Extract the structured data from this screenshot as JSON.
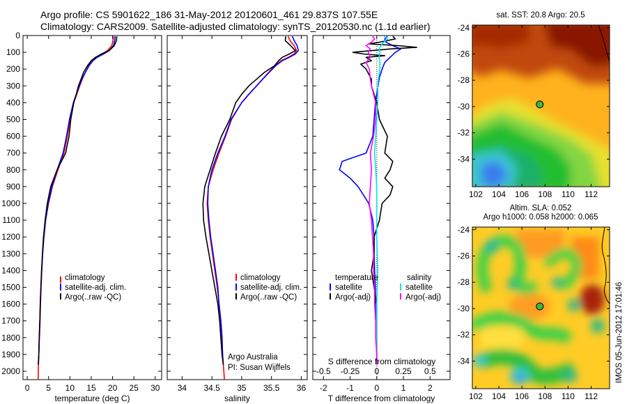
{
  "header": {
    "line1": "Argo profile: CS 5901622_186 31-May-2012 20120601_461 29.837S 107.55E",
    "line2": "Climatology: CARS2009. Satellite-adjusted climatology: synTS_20120530.nc (1.1d earlier)"
  },
  "colors": {
    "climatology": "#ff0000",
    "satellite": "#0000ff",
    "argo": "#000000",
    "satellite_s": "#00e5e5",
    "argo_s": "#ff00ff"
  },
  "annotations": {
    "institution": "Argo Australia",
    "pi": "PI: Susan Wijffels",
    "timestamp": "IMOS 05-Jun-2012 17:01:46"
  },
  "chart_data": [
    {
      "id": "temperature",
      "type": "line",
      "xlabel": "temperature (deg C)",
      "ylabel": "",
      "xlim": [
        -1,
        31.5
      ],
      "ylim": [
        2050,
        0
      ],
      "xticks": [
        0,
        5,
        10,
        15,
        20,
        25,
        30
      ],
      "yticks": [
        0,
        100,
        200,
        300,
        400,
        500,
        600,
        700,
        800,
        900,
        1000,
        1100,
        1200,
        1300,
        1400,
        1500,
        1600,
        1700,
        1800,
        1900,
        2000
      ],
      "legend": [
        "climatology",
        "satellite-adj. clim.",
        "Argo(..raw -QC)"
      ],
      "legend_position": "lower-middle",
      "series": [
        {
          "name": "climatology",
          "color": "#ff0000",
          "depth": [
            5,
            30,
            60,
            90,
            110,
            130,
            150,
            180,
            220,
            260,
            300,
            350,
            400,
            500,
            600,
            700,
            800,
            900,
            1000,
            1100,
            1200,
            1300,
            1400,
            1500,
            1600,
            1700,
            1800,
            1900,
            2000,
            2050
          ],
          "values": [
            20.2,
            20.1,
            19.8,
            18.8,
            17.5,
            16.2,
            15.3,
            14.4,
            13.6,
            12.9,
            12.3,
            11.6,
            10.9,
            10.0,
            9.4,
            8.6,
            7.2,
            5.9,
            5.0,
            4.3,
            3.9,
            3.6,
            3.4,
            3.25,
            3.1,
            3.0,
            2.85,
            2.7,
            2.6,
            2.55
          ]
        },
        {
          "name": "satellite-adj. clim.",
          "color": "#0000ff",
          "depth": [
            5,
            30,
            60,
            90,
            110,
            130,
            150,
            180,
            220,
            260,
            300,
            350,
            400,
            500,
            600,
            700,
            800,
            900,
            1000,
            1100,
            1200,
            1300,
            1400,
            1500,
            1600,
            1700,
            1800,
            1900,
            1960
          ],
          "values": [
            20.6,
            20.5,
            20.2,
            19.2,
            17.9,
            16.4,
            15.4,
            14.5,
            13.6,
            12.8,
            12.2,
            11.5,
            10.8,
            9.9,
            9.2,
            8.4,
            7.0,
            5.8,
            4.9,
            4.3,
            3.9,
            3.6,
            3.4,
            3.2,
            3.05,
            2.95,
            2.8,
            2.7,
            2.6
          ]
        },
        {
          "name": "Argo(..raw -QC)",
          "color": "#000000",
          "depth": [
            5,
            30,
            60,
            90,
            110,
            130,
            150,
            180,
            220,
            260,
            300,
            350,
            400,
            500,
            600,
            700,
            800,
            900,
            1000,
            1100,
            1200,
            1300,
            1400,
            1500,
            1600,
            1700,
            1800,
            1900,
            1960
          ],
          "values": [
            21.0,
            20.9,
            20.4,
            19.2,
            17.4,
            16.0,
            15.0,
            14.1,
            13.2,
            12.6,
            12.0,
            11.5,
            10.9,
            10.2,
            9.8,
            9.0,
            7.0,
            5.5,
            4.7,
            4.2,
            3.8,
            3.55,
            3.35,
            3.2,
            3.05,
            2.95,
            2.8,
            2.7,
            2.6
          ]
        }
      ]
    },
    {
      "id": "salinity",
      "type": "line",
      "xlabel": "salinity",
      "ylabel": "",
      "xlim": [
        33.75,
        36.1
      ],
      "ylim": [
        2050,
        0
      ],
      "xticks": [
        34,
        34.5,
        35,
        35.5,
        36
      ],
      "legend": [
        "climatology",
        "satellite-adj. clim.",
        "Argo(..raw -QC)"
      ],
      "legend_position": "lower-right",
      "series": [
        {
          "name": "climatology",
          "color": "#ff0000",
          "depth": [
            5,
            30,
            60,
            90,
            110,
            130,
            150,
            180,
            220,
            260,
            300,
            350,
            400,
            500,
            600,
            700,
            800,
            900,
            1000,
            1100,
            1200,
            1300,
            1400,
            1500,
            1600,
            1700,
            1800,
            1900,
            2000,
            2050
          ],
          "values": [
            35.78,
            35.81,
            35.88,
            35.92,
            35.88,
            35.78,
            35.66,
            35.56,
            35.45,
            35.35,
            35.25,
            35.12,
            35.0,
            34.83,
            34.73,
            34.62,
            34.52,
            34.44,
            34.42,
            34.44,
            34.47,
            34.51,
            34.55,
            34.59,
            34.62,
            34.65,
            34.67,
            34.68,
            34.7,
            34.71
          ]
        },
        {
          "name": "satellite-adj. clim.",
          "color": "#0000ff",
          "depth": [
            5,
            30,
            60,
            90,
            110,
            130,
            150,
            180,
            220,
            260,
            300,
            350,
            400,
            500,
            600,
            700,
            800,
            900,
            1000,
            1100,
            1200,
            1300,
            1400,
            1500,
            1600,
            1700,
            1800,
            1900,
            1960
          ],
          "values": [
            35.85,
            35.88,
            35.93,
            35.95,
            35.9,
            35.8,
            35.68,
            35.57,
            35.46,
            35.35,
            35.25,
            35.12,
            35.0,
            34.82,
            34.72,
            34.6,
            34.5,
            34.44,
            34.43,
            34.45,
            34.48,
            34.52,
            34.56,
            34.6,
            34.62,
            34.65,
            34.67,
            34.68,
            34.69
          ]
        },
        {
          "name": "Argo(..raw -QC)",
          "color": "#000000",
          "depth": [
            5,
            30,
            60,
            90,
            110,
            130,
            150,
            180,
            220,
            260,
            300,
            350,
            400,
            500,
            600,
            700,
            800,
            900,
            1000,
            1100,
            1200,
            1300,
            1400,
            1500,
            1600,
            1700,
            1800,
            1900,
            1960
          ],
          "values": [
            35.74,
            35.73,
            35.82,
            35.9,
            35.8,
            35.68,
            35.62,
            35.55,
            35.38,
            35.25,
            35.12,
            35.0,
            34.9,
            34.8,
            34.66,
            34.56,
            34.47,
            34.38,
            34.35,
            34.36,
            34.4,
            34.45,
            34.5,
            34.55,
            34.6,
            34.63,
            34.65,
            34.67,
            34.69
          ]
        }
      ]
    },
    {
      "id": "differences",
      "type": "line",
      "xlabel": "T difference from climatology",
      "xlabel_top": "S difference from climatology",
      "xlim": [
        -2.4,
        2.75
      ],
      "xlim_s": [
        -0.6,
        0.6875
      ],
      "ylim": [
        2050,
        0
      ],
      "xticks": [
        -2,
        -1,
        0,
        1,
        2
      ],
      "xticks_s": [
        "-0.5",
        "-0.25",
        "0",
        "0.25",
        "0.5"
      ],
      "xticks_s_values": [
        -0.5,
        -0.25,
        0,
        0.25,
        0.5
      ],
      "legend_left_title": "temperature",
      "legend_right_title": "salinity",
      "legend_left": [
        "satellite",
        "Argo(-adj)"
      ],
      "legend_right": [
        "satellite",
        "Argo(-adj)"
      ],
      "legend_position": "lower-middle",
      "series": [
        {
          "name": "temperature satellite",
          "color": "#0000ff",
          "units": "T",
          "depth": [
            5,
            20,
            40,
            60,
            80,
            100,
            130,
            160,
            200,
            250,
            300,
            400,
            500,
            600,
            700,
            750,
            800,
            850,
            900,
            950,
            1000,
            1100,
            1200,
            1300,
            1400,
            1500,
            1600,
            1700,
            1800,
            1900,
            1960
          ],
          "values": [
            0.4,
            0.3,
            0.35,
            0.6,
            0.9,
            0.7,
            0.5,
            0.3,
            0.2,
            0.1,
            0.05,
            -0.05,
            -0.1,
            -0.15,
            -0.4,
            -1.3,
            -1.4,
            -1.0,
            -0.7,
            -0.5,
            -0.3,
            -0.15,
            -0.1,
            -0.1,
            -0.08,
            -0.05,
            -0.05,
            -0.04,
            -0.03,
            0,
            0
          ]
        },
        {
          "name": "temperature Argo(-adj)",
          "color": "#000000",
          "units": "T",
          "depth": [
            5,
            20,
            40,
            50,
            60,
            70,
            80,
            90,
            100,
            110,
            120,
            130,
            150,
            170,
            200,
            230,
            260,
            300,
            350,
            400,
            500,
            600,
            700,
            750,
            800,
            850,
            900,
            950,
            1000,
            1100,
            1200,
            1300,
            1400,
            1500,
            1600,
            1700,
            1800,
            1900,
            1960
          ],
          "values": [
            0.6,
            0.7,
            0.1,
            -0.3,
            0.8,
            1.5,
            0.5,
            -0.2,
            -0.9,
            -0.5,
            0.3,
            -0.4,
            -0.2,
            -0.6,
            -0.4,
            -0.3,
            -0.2,
            -0.2,
            -0.1,
            0.0,
            0.1,
            0.4,
            0.3,
            0.6,
            0.5,
            0.3,
            0.6,
            0.5,
            0.2,
            0.1,
            -0.1,
            -0.1,
            -0.2,
            -0.1,
            0,
            0,
            0,
            0,
            0
          ]
        },
        {
          "name": "salinity satellite",
          "color": "#00e5e5",
          "units": "S",
          "depth": [
            5,
            20,
            50,
            80,
            100,
            130,
            160,
            200,
            260,
            300,
            400,
            500,
            600,
            700,
            800,
            900,
            1000,
            1200,
            1400,
            1600,
            1800,
            1960
          ],
          "values": [
            0.07,
            0.1,
            0.05,
            0.02,
            0.03,
            0.02,
            0.03,
            0.03,
            0.015,
            0.01,
            0.01,
            0.0,
            -0.01,
            -0.02,
            -0.01,
            0.0,
            0.0,
            0.0,
            0.01,
            0.0,
            0.0,
            0.0
          ]
        },
        {
          "name": "salinity Argo(-adj)",
          "color": "#ff00ff",
          "units": "S",
          "depth": [
            5,
            20,
            40,
            60,
            80,
            100,
            130,
            160,
            200,
            260,
            300,
            400,
            500,
            600,
            700,
            800,
            900,
            1000,
            1100,
            1200,
            1300,
            1400,
            1500,
            1600,
            1700,
            1800,
            1900,
            1960
          ],
          "values": [
            -0.04,
            -0.02,
            -0.05,
            -0.1,
            -0.06,
            -0.08,
            -0.06,
            -0.1,
            -0.07,
            -0.06,
            -0.05,
            -0.01,
            -0.01,
            -0.03,
            -0.06,
            -0.05,
            -0.06,
            -0.07,
            -0.05,
            -0.04,
            -0.03,
            -0.03,
            -0.02,
            -0.02,
            -0.01,
            -0.01,
            0,
            0
          ]
        }
      ]
    },
    {
      "id": "sst_map",
      "type": "heatmap",
      "title": "sat. SST: 20.8  Argo: 20.5",
      "xlim": [
        101.7,
        113.6
      ],
      "ylim": [
        -36.1,
        -23.8
      ],
      "xticks": [
        102,
        104,
        106,
        108,
        110,
        112
      ],
      "yticks": [
        -24,
        -26,
        -28,
        -30,
        -32,
        -34
      ],
      "marker": {
        "lon": 107.55,
        "lat": -29.837
      }
    },
    {
      "id": "sla_map",
      "type": "heatmap",
      "title": "Altim. SLA: 0.052",
      "subtitle": "Argo h1000: 0.058  h2000: 0.065",
      "xlim": [
        101.7,
        113.6
      ],
      "ylim": [
        -36.1,
        -23.8
      ],
      "xticks": [
        102,
        104,
        106,
        108,
        110,
        112
      ],
      "yticks": [
        -24,
        -26,
        -28,
        -30,
        -32,
        -34
      ],
      "marker": {
        "lon": 107.55,
        "lat": -29.837
      }
    }
  ]
}
